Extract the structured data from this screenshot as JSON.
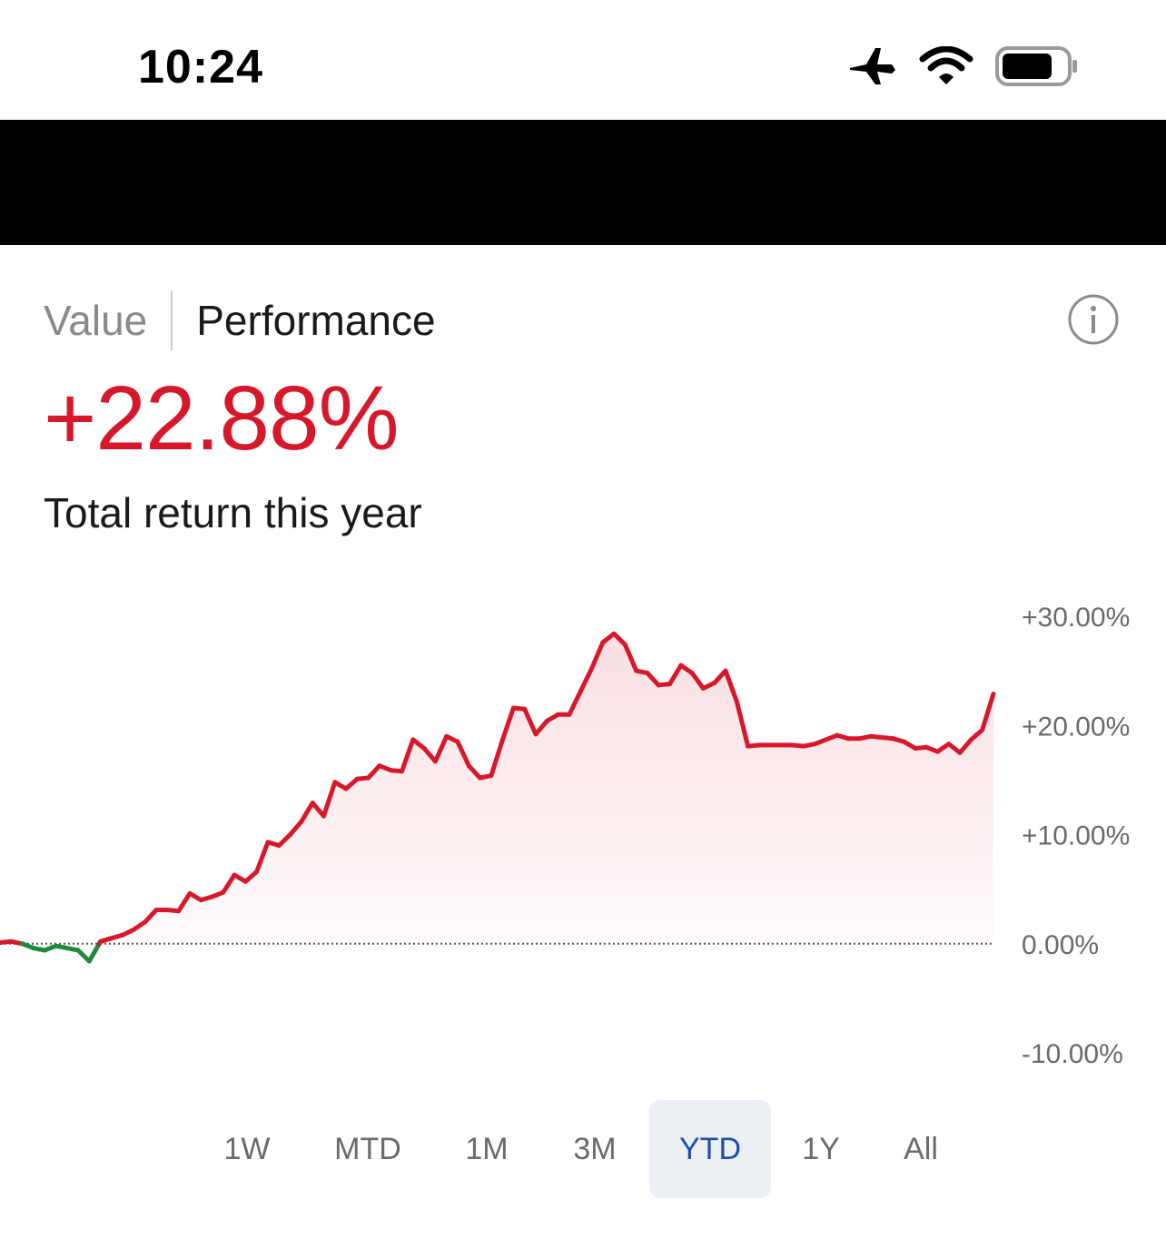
{
  "status_bar": {
    "time": "10:24",
    "icons": [
      "airplane-icon",
      "wifi-icon",
      "battery-icon"
    ]
  },
  "tabs": {
    "value_label": "Value",
    "performance_label": "Performance",
    "active": "Performance"
  },
  "summary": {
    "total_return": "+22.88%",
    "subtitle": "Total return this year"
  },
  "colors": {
    "positive": "#d7182a",
    "negative": "#1e8a3c",
    "active_range_text": "#1a4fa8",
    "active_range_bg": "#eceff4"
  },
  "chart_data": {
    "type": "line",
    "title": "",
    "xlabel": "",
    "ylabel": "",
    "y_ticks": [
      "+30.00%",
      "+20.00%",
      "+10.00%",
      "0.00%",
      "-10.00%"
    ],
    "ylim": [
      -10,
      30
    ],
    "grid": false,
    "baseline": 0,
    "series": [
      {
        "values": [
          0.1,
          0.2,
          0.0,
          -0.4,
          -0.6,
          -0.2,
          -0.4,
          -0.6,
          -1.6,
          0.2,
          0.5,
          0.8,
          1.3,
          2.0,
          3.1,
          3.1,
          3.0,
          4.6,
          4.0,
          4.3,
          4.7,
          6.3,
          5.7,
          6.6,
          9.3,
          9.0,
          10.0,
          11.2,
          12.9,
          11.7,
          14.8,
          14.2,
          15.1,
          15.2,
          16.3,
          15.9,
          15.8,
          18.7,
          17.9,
          16.7,
          19.0,
          18.5,
          16.3,
          15.2,
          15.4,
          18.6,
          21.6,
          21.5,
          19.2,
          20.4,
          21.0,
          21.0,
          23.1,
          25.2,
          27.6,
          28.4,
          27.4,
          25.0,
          24.8,
          23.7,
          23.8,
          25.5,
          24.8,
          23.4,
          23.9,
          25.0,
          22.2,
          18.1,
          18.2,
          18.2,
          18.2,
          18.2,
          18.1,
          18.3,
          18.7,
          19.1,
          18.8,
          18.8,
          19.0,
          18.9,
          18.8,
          18.5,
          17.9,
          18.0,
          17.6,
          18.3,
          17.5,
          18.7,
          19.6,
          22.9
        ]
      }
    ]
  },
  "ranges": {
    "options": [
      "1W",
      "MTD",
      "1M",
      "3M",
      "YTD",
      "1Y",
      "All"
    ],
    "selected": "YTD"
  }
}
